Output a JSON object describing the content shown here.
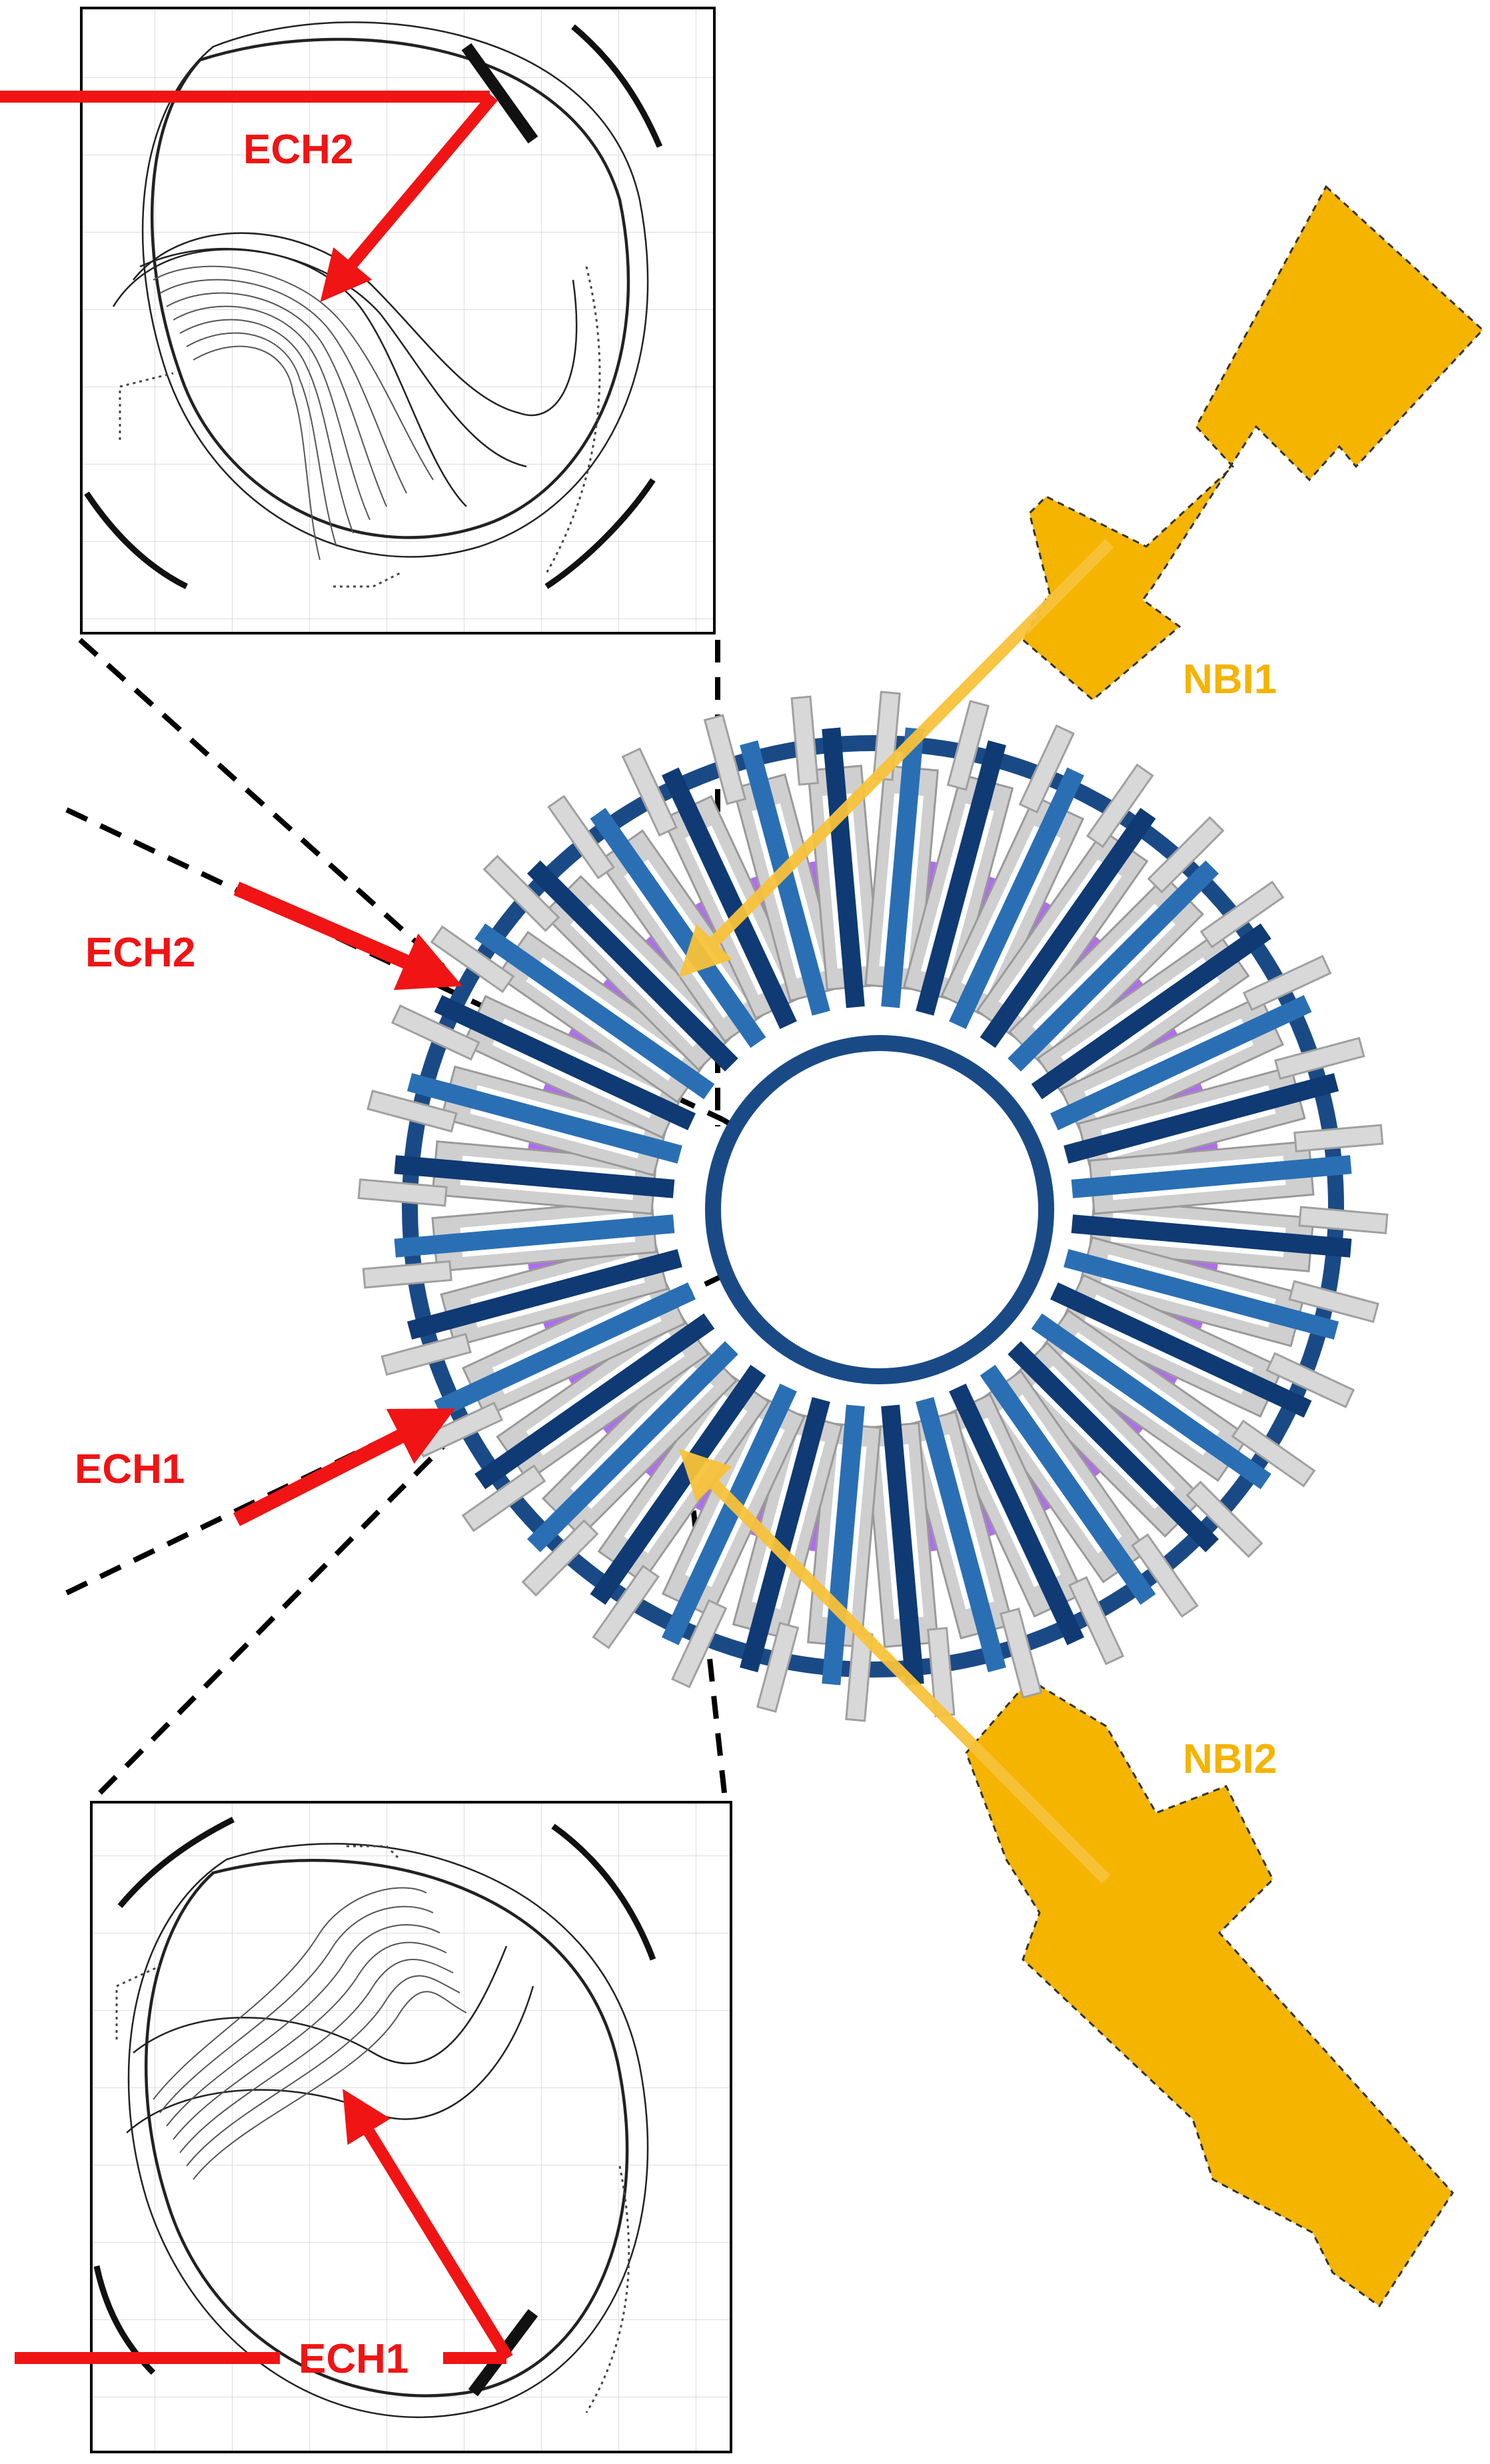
{
  "labels": {
    "ech2_inset": "ECH2",
    "ech2_side": "ECH2",
    "ech1_side": "ECH1",
    "ech1_inset": "ECH1",
    "nbi1": "NBI1",
    "nbi2": "NBI2"
  },
  "colors": {
    "ech": "#f01414",
    "nbi": "#f4b400",
    "nbi_arrow": "#f8c23a",
    "vessel_ring": "#1a4a86",
    "coil_dark": "#0f3a73",
    "coil_blue": "#2a6fb4",
    "coil_grey": "#cfcfcf",
    "plasma": "#a85cf0",
    "dashed": "#000000"
  },
  "coils": {
    "count": 36,
    "field_periods": 4
  }
}
